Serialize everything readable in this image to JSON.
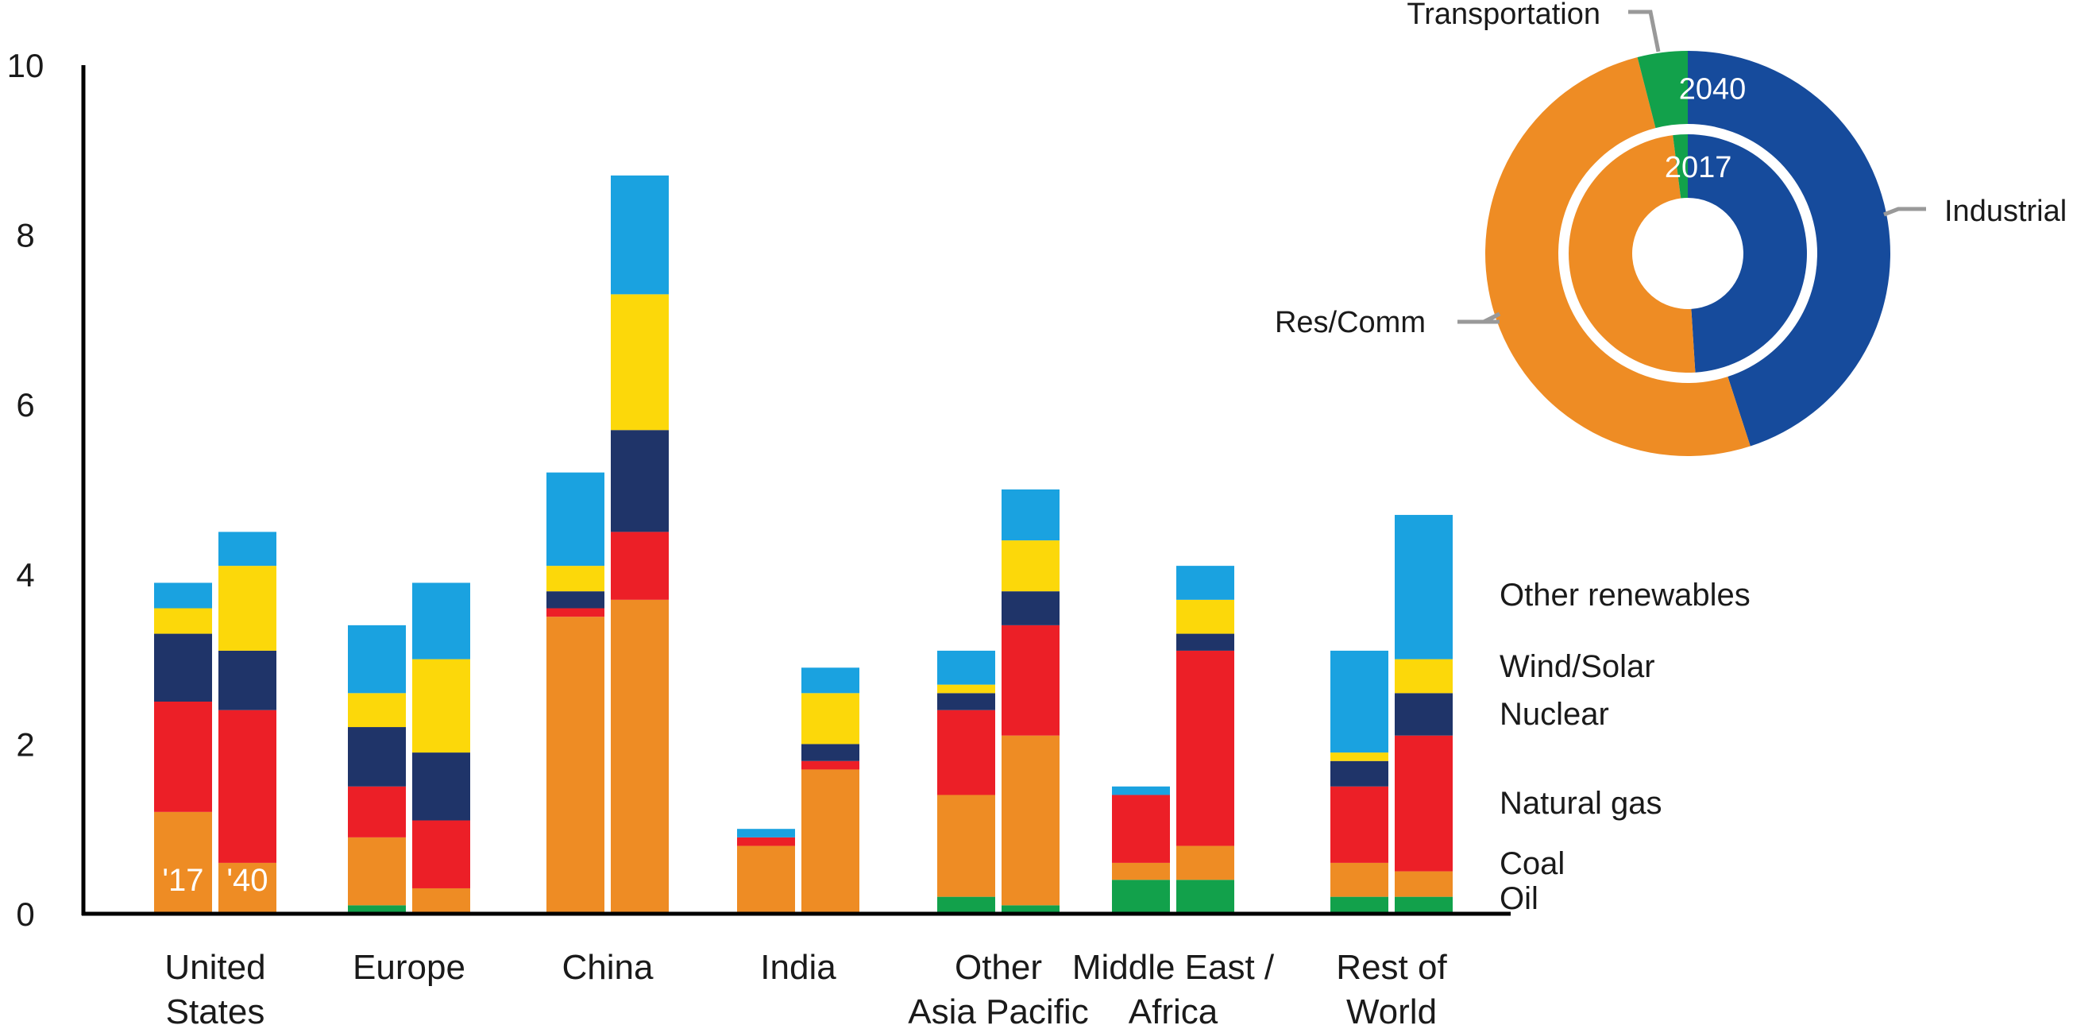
{
  "chart_data": [
    {
      "type": "bar",
      "stacked": true,
      "ylim": [
        0,
        10
      ],
      "yticks": [
        0,
        2,
        4,
        6,
        8,
        10
      ],
      "categories": [
        [
          "United",
          "States"
        ],
        [
          "Europe"
        ],
        [
          "China"
        ],
        [
          "India"
        ],
        [
          "Other",
          "Asia Pacific"
        ],
        [
          "Middle East /",
          "Africa"
        ],
        [
          "Rest of",
          "World"
        ]
      ],
      "bar_years": [
        "'17",
        "'40"
      ],
      "series": [
        {
          "name": "Oil",
          "color": "#12a14b",
          "values_2017": [
            0,
            0.1,
            0,
            0,
            0.2,
            0.4,
            0.2
          ],
          "values_2040": [
            0,
            0,
            0,
            0,
            0.1,
            0.4,
            0.2
          ]
        },
        {
          "name": "Coal",
          "color": "#ee8c24",
          "values_2017": [
            1.2,
            0.8,
            3.5,
            0.8,
            1.2,
            0.2,
            0.4
          ],
          "values_2040": [
            0.6,
            0.3,
            3.7,
            1.7,
            2.0,
            0.4,
            0.3
          ]
        },
        {
          "name": "Natural gas",
          "color": "#ec1f27",
          "values_2017": [
            1.3,
            0.6,
            0.1,
            0.1,
            1.0,
            0.8,
            0.9
          ],
          "values_2040": [
            1.8,
            0.8,
            0.8,
            0.1,
            1.3,
            2.3,
            1.6
          ]
        },
        {
          "name": "Nuclear",
          "color": "#1f3469",
          "values_2017": [
            0.8,
            0.7,
            0.2,
            0,
            0.2,
            0,
            0.3
          ],
          "values_2040": [
            0.7,
            0.8,
            1.2,
            0.2,
            0.4,
            0.2,
            0.5
          ]
        },
        {
          "name": "Wind/Solar",
          "color": "#fcd80a",
          "values_2017": [
            0.3,
            0.4,
            0.3,
            0,
            0.1,
            0,
            0.1
          ],
          "values_2040": [
            1.0,
            1.1,
            1.6,
            0.6,
            0.6,
            0.4,
            0.4
          ]
        },
        {
          "name": "Other renewables",
          "color": "#1aa2e0",
          "values_2017": [
            0.3,
            0.8,
            1.1,
            0.1,
            0.4,
            0.1,
            1.2
          ],
          "values_2040": [
            0.4,
            0.9,
            1.4,
            0.3,
            0.6,
            0.4,
            1.7
          ]
        }
      ],
      "legend_order": [
        "Other renewables",
        "Wind/Solar",
        "Nuclear",
        "Natural gas",
        "Coal",
        "Oil"
      ],
      "legend_placement": "right"
    },
    {
      "type": "pie",
      "style": "nested-donut",
      "rings": [
        {
          "label": "2040",
          "position": "outer",
          "slices": [
            {
              "name": "Industrial",
              "value": 45,
              "color": "#164b9c"
            },
            {
              "name": "Res/Comm",
              "value": 51,
              "color": "#ee8c24"
            },
            {
              "name": "Transportation",
              "value": 4,
              "color": "#12a14b"
            }
          ]
        },
        {
          "label": "2017",
          "position": "inner",
          "slices": [
            {
              "name": "Industrial",
              "value": 49,
              "color": "#164b9c"
            },
            {
              "name": "Res/Comm",
              "value": 49,
              "color": "#ee8c24"
            },
            {
              "name": "Transportation",
              "value": 2,
              "color": "#12a14b"
            }
          ]
        }
      ],
      "slice_labels": [
        "Transportation",
        "Industrial",
        "Res/Comm"
      ],
      "leader_line_color": "#999999"
    }
  ]
}
